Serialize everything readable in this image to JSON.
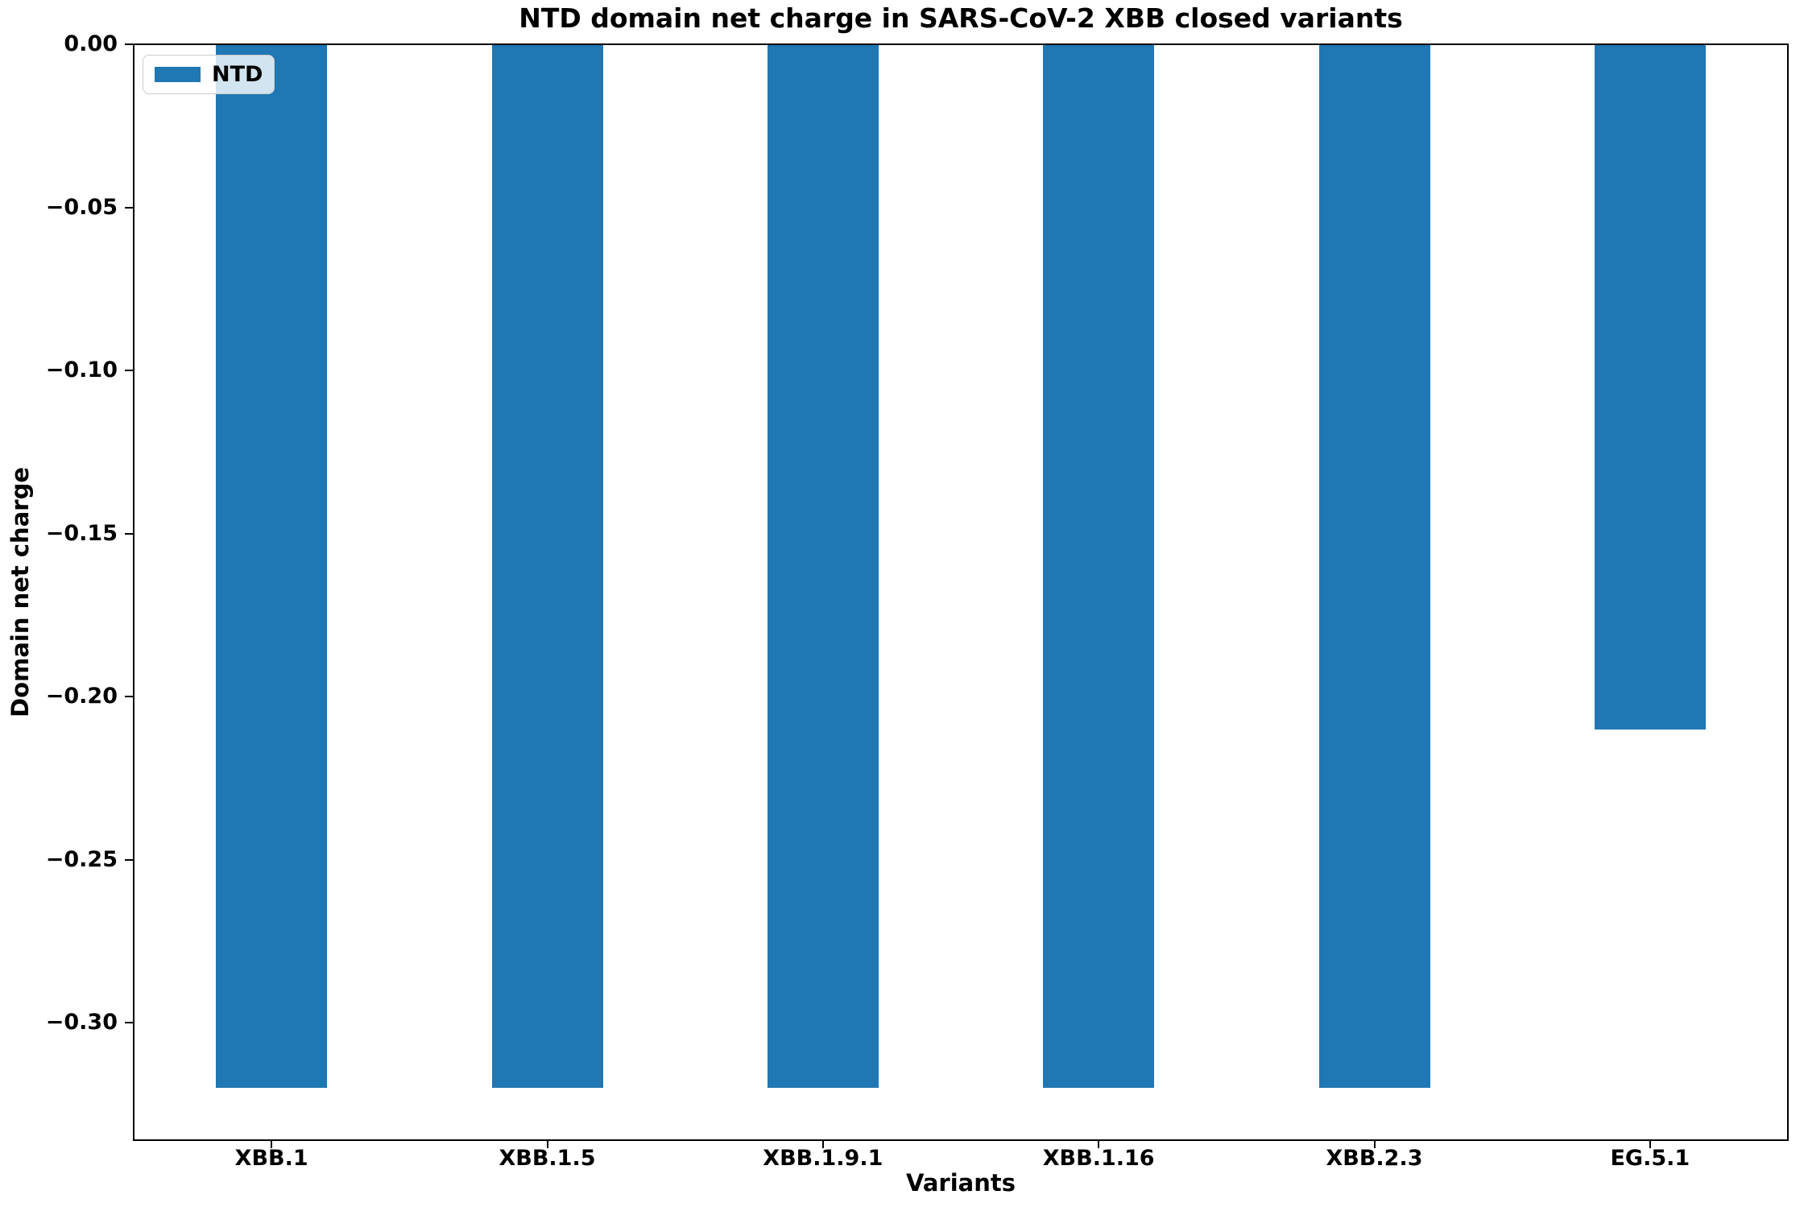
{
  "figure": {
    "background": "#ffffff"
  },
  "chart_data": {
    "type": "bar",
    "title": "NTD domain net charge in SARS-CoV-2 XBB closed variants",
    "xlabel": "Variants",
    "ylabel": "Domain net charge",
    "categories": [
      "XBB.1",
      "XBB.1.5",
      "XBB.1.9.1",
      "XBB.1.16",
      "XBB.2.3",
      "EG.5.1"
    ],
    "series": [
      {
        "name": "NTD",
        "values": [
          -0.32,
          -0.32,
          -0.32,
          -0.32,
          -0.32,
          -0.21
        ],
        "color": "#1f77b4"
      }
    ],
    "ylim": [
      -0.336,
      0
    ],
    "yticks": {
      "values": [
        0,
        -0.05,
        -0.1,
        -0.15,
        -0.2,
        -0.25,
        -0.3
      ],
      "labels": [
        "0.00",
        "−0.05",
        "−0.10",
        "−0.15",
        "−0.20",
        "−0.25",
        "−0.30"
      ]
    },
    "legend": {
      "position": "upper left",
      "entries": [
        {
          "label": "NTD",
          "color": "#1f77b4"
        }
      ]
    },
    "grid": false,
    "axis_color": "#000000"
  }
}
